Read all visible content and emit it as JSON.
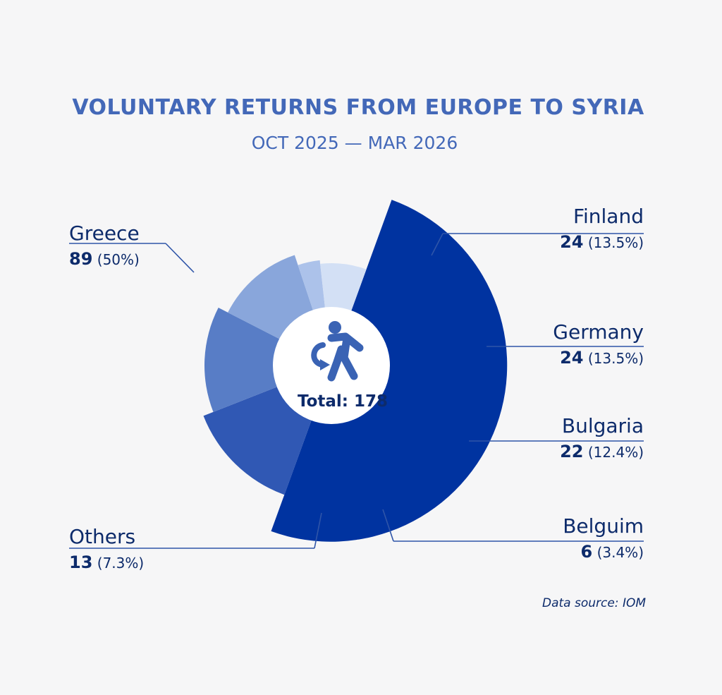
{
  "chart_data": {
    "type": "pie",
    "title": "VOLUNTARY RETURNS FROM EUROPE TO SYRIA",
    "subtitle": "OCT 2025 — MAR 2026",
    "center_label": "Total: 178",
    "source": "Data source: IOM",
    "slices": [
      {
        "label": "Greece",
        "value": 89,
        "percent": "(50%)",
        "color": "#0033a0"
      },
      {
        "label": "Finland",
        "value": 24,
        "percent": "(13.5%)",
        "color": "#3058b4"
      },
      {
        "label": "Germany",
        "value": 24,
        "percent": "(13.5%)",
        "color": "#587dc6"
      },
      {
        "label": "Bulgaria",
        "value": 22,
        "percent": "(12.4%)",
        "color": "#89a6db"
      },
      {
        "label": "Belguim",
        "value": 6,
        "percent": "(3.4%)",
        "color": "#acc2ea"
      },
      {
        "label": "Others",
        "value": 13,
        "percent": "(7.3%)",
        "color": "#d3e0f5"
      }
    ],
    "colors": {
      "title": "#4368b8",
      "label": "#0d2b6b",
      "leader": "#2f55a8",
      "background": "#f6f6f7",
      "center": "#ffffff",
      "icon": "#3a63b4"
    },
    "icon": "person-returning-icon"
  }
}
